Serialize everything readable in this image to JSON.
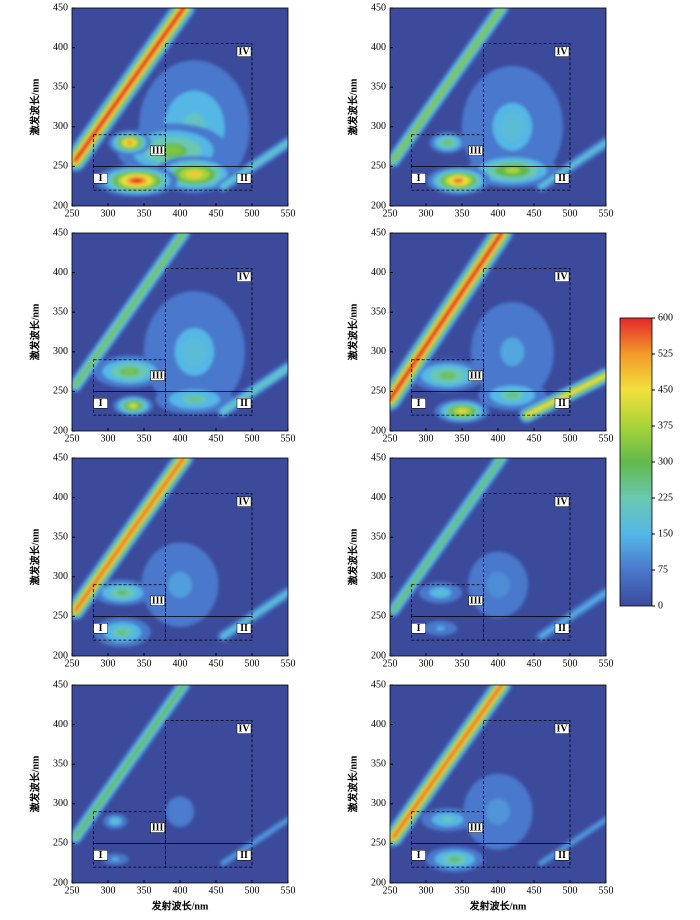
{
  "chart_data": [
    {
      "type": "contour",
      "xlim": [
        250,
        550
      ],
      "ylim": [
        200,
        450
      ],
      "xticks": [
        250,
        300,
        350,
        400,
        450,
        500,
        550
      ],
      "yticks": [
        200,
        250,
        300,
        350,
        400,
        450
      ],
      "ylabel": "激发波长/nm",
      "regions": [
        {
          "label": "I",
          "em": [
            280,
            380
          ],
          "ex": [
            220,
            250
          ]
        },
        {
          "label": "II",
          "em": [
            380,
            500
          ],
          "ex": [
            220,
            250
          ]
        },
        {
          "label": "III",
          "em": [
            280,
            380
          ],
          "ex": [
            250,
            290
          ]
        },
        {
          "label": "IV",
          "em": [
            380,
            500
          ],
          "ex": [
            250,
            405
          ]
        }
      ],
      "band": {
        "em": [
          255,
          405
        ],
        "ex": [
          258,
          450
        ],
        "width": 8,
        "value": 600
      },
      "band2": {
        "em": [
          460,
          550
        ],
        "ex": [
          225,
          280
        ],
        "width": 6,
        "value": 200
      },
      "peaks": [
        {
          "em": 420,
          "ex": 300,
          "w": 55,
          "h": 60,
          "value": 200
        },
        {
          "em": 390,
          "ex": 270,
          "w": 45,
          "h": 20,
          "value": 330
        },
        {
          "em": 420,
          "ex": 240,
          "w": 30,
          "h": 12,
          "value": 480
        },
        {
          "em": 340,
          "ex": 232,
          "w": 28,
          "h": 10,
          "value": 600
        },
        {
          "em": 330,
          "ex": 280,
          "w": 15,
          "h": 8,
          "value": 540
        }
      ]
    },
    {
      "type": "contour",
      "xlim": [
        250,
        550
      ],
      "ylim": [
        200,
        450
      ],
      "xticks": [
        250,
        300,
        350,
        400,
        450,
        500,
        550
      ],
      "yticks": [
        200,
        250,
        300,
        350,
        400,
        450
      ],
      "ylabel": "激发波长/nm",
      "regions": [
        {
          "label": "I",
          "em": [
            280,
            380
          ],
          "ex": [
            220,
            250
          ]
        },
        {
          "label": "II",
          "em": [
            380,
            500
          ],
          "ex": [
            220,
            250
          ]
        },
        {
          "label": "III",
          "em": [
            280,
            380
          ],
          "ex": [
            250,
            290
          ]
        },
        {
          "label": "IV",
          "em": [
            380,
            500
          ],
          "ex": [
            250,
            405
          ]
        }
      ],
      "band": {
        "em": [
          255,
          405
        ],
        "ex": [
          258,
          450
        ],
        "width": 6,
        "value": 340
      },
      "band2": {
        "em": [
          460,
          550
        ],
        "ex": [
          225,
          280
        ],
        "width": 6,
        "value": 180
      },
      "peaks": [
        {
          "em": 420,
          "ex": 300,
          "w": 55,
          "h": 60,
          "value": 170
        },
        {
          "em": 420,
          "ex": 245,
          "w": 35,
          "h": 12,
          "value": 380
        },
        {
          "em": 345,
          "ex": 232,
          "w": 22,
          "h": 9,
          "value": 560
        },
        {
          "em": 330,
          "ex": 280,
          "w": 15,
          "h": 8,
          "value": 320
        }
      ]
    },
    {
      "type": "contour",
      "xlim": [
        250,
        550
      ],
      "ylim": [
        200,
        450
      ],
      "xticks": [
        250,
        300,
        350,
        400,
        450,
        500,
        550
      ],
      "yticks": [
        200,
        250,
        300,
        350,
        400,
        450
      ],
      "ylabel": "激发波长/nm",
      "regions": [
        {
          "label": "I",
          "em": [
            280,
            380
          ],
          "ex": [
            220,
            250
          ]
        },
        {
          "label": "II",
          "em": [
            380,
            500
          ],
          "ex": [
            220,
            250
          ]
        },
        {
          "label": "III",
          "em": [
            280,
            380
          ],
          "ex": [
            250,
            290
          ]
        },
        {
          "label": "IV",
          "em": [
            380,
            500
          ],
          "ex": [
            250,
            405
          ]
        }
      ],
      "band": {
        "em": [
          255,
          405
        ],
        "ex": [
          258,
          450
        ],
        "width": 6,
        "value": 320
      },
      "band2": {
        "em": [
          460,
          550
        ],
        "ex": [
          225,
          280
        ],
        "width": 6,
        "value": 220
      },
      "peaks": [
        {
          "em": 420,
          "ex": 300,
          "w": 55,
          "h": 60,
          "value": 170
        },
        {
          "em": 420,
          "ex": 240,
          "w": 35,
          "h": 12,
          "value": 250
        },
        {
          "em": 330,
          "ex": 275,
          "w": 30,
          "h": 12,
          "value": 330
        },
        {
          "em": 335,
          "ex": 232,
          "w": 15,
          "h": 7,
          "value": 430
        }
      ]
    },
    {
      "type": "contour",
      "xlim": [
        250,
        550
      ],
      "ylim": [
        200,
        450
      ],
      "xticks": [
        250,
        300,
        350,
        400,
        450,
        500,
        550
      ],
      "yticks": [
        200,
        250,
        300,
        350,
        400,
        450
      ],
      "ylabel": "激发波长/nm",
      "regions": [
        {
          "label": "I",
          "em": [
            280,
            380
          ],
          "ex": [
            220,
            250
          ]
        },
        {
          "label": "II",
          "em": [
            380,
            500
          ],
          "ex": [
            220,
            250
          ]
        },
        {
          "label": "III",
          "em": [
            280,
            380
          ],
          "ex": [
            250,
            290
          ]
        },
        {
          "label": "IV",
          "em": [
            380,
            500
          ],
          "ex": [
            250,
            405
          ]
        }
      ],
      "band": {
        "em": [
          250,
          405
        ],
        "ex": [
          240,
          450
        ],
        "width": 8,
        "value": 600
      },
      "band2": {
        "em": [
          440,
          550
        ],
        "ex": [
          220,
          270
        ],
        "width": 6,
        "value": 450
      },
      "peaks": [
        {
          "em": 420,
          "ex": 300,
          "w": 55,
          "h": 60,
          "value": 130
        },
        {
          "em": 420,
          "ex": 245,
          "w": 30,
          "h": 12,
          "value": 260
        },
        {
          "em": 330,
          "ex": 270,
          "w": 30,
          "h": 12,
          "value": 320
        },
        {
          "em": 350,
          "ex": 225,
          "w": 20,
          "h": 8,
          "value": 460
        }
      ]
    },
    {
      "type": "contour",
      "xlim": [
        250,
        550
      ],
      "ylim": [
        200,
        450
      ],
      "xticks": [
        250,
        300,
        350,
        400,
        450,
        500,
        550
      ],
      "yticks": [
        200,
        250,
        300,
        350,
        400,
        450
      ],
      "ylabel": "激发波长/nm",
      "regions": [
        {
          "label": "I",
          "em": [
            280,
            380
          ],
          "ex": [
            220,
            250
          ]
        },
        {
          "label": "II",
          "em": [
            380,
            500
          ],
          "ex": [
            220,
            250
          ]
        },
        {
          "label": "III",
          "em": [
            280,
            380
          ],
          "ex": [
            250,
            290
          ]
        },
        {
          "label": "IV",
          "em": [
            380,
            500
          ],
          "ex": [
            250,
            405
          ]
        }
      ],
      "band": {
        "em": [
          255,
          405
        ],
        "ex": [
          258,
          450
        ],
        "width": 7,
        "value": 560
      },
      "band2": {
        "em": [
          460,
          550
        ],
        "ex": [
          225,
          280
        ],
        "width": 6,
        "value": 180
      },
      "peaks": [
        {
          "em": 400,
          "ex": 290,
          "w": 55,
          "h": 55,
          "value": 120
        },
        {
          "em": 320,
          "ex": 230,
          "w": 25,
          "h": 12,
          "value": 260
        },
        {
          "em": 320,
          "ex": 280,
          "w": 25,
          "h": 10,
          "value": 290
        }
      ]
    },
    {
      "type": "contour",
      "xlim": [
        250,
        550
      ],
      "ylim": [
        200,
        450
      ],
      "xticks": [
        250,
        300,
        350,
        400,
        450,
        500,
        550
      ],
      "yticks": [
        200,
        250,
        300,
        350,
        400,
        450
      ],
      "ylabel": "激发波长/nm",
      "regions": [
        {
          "label": "I",
          "em": [
            280,
            380
          ],
          "ex": [
            220,
            250
          ]
        },
        {
          "label": "II",
          "em": [
            380,
            500
          ],
          "ex": [
            220,
            250
          ]
        },
        {
          "label": "III",
          "em": [
            280,
            380
          ],
          "ex": [
            250,
            290
          ]
        },
        {
          "label": "IV",
          "em": [
            380,
            500
          ],
          "ex": [
            250,
            405
          ]
        }
      ],
      "band": {
        "em": [
          255,
          405
        ],
        "ex": [
          258,
          450
        ],
        "width": 6,
        "value": 280
      },
      "band2": {
        "em": [
          460,
          550
        ],
        "ex": [
          225,
          280
        ],
        "width": 6,
        "value": 150
      },
      "peaks": [
        {
          "em": 400,
          "ex": 290,
          "w": 55,
          "h": 55,
          "value": 100
        },
        {
          "em": 320,
          "ex": 235,
          "w": 20,
          "h": 8,
          "value": 150
        },
        {
          "em": 320,
          "ex": 280,
          "w": 22,
          "h": 10,
          "value": 190
        }
      ]
    },
    {
      "type": "contour",
      "xlim": [
        250,
        550
      ],
      "ylim": [
        200,
        450
      ],
      "xticks": [
        250,
        300,
        350,
        400,
        450,
        500,
        550
      ],
      "yticks": [
        200,
        250,
        300,
        350,
        400,
        450
      ],
      "ylabel": "激发波长/nm",
      "xlabel": "发射波长/nm",
      "regions": [
        {
          "label": "I",
          "em": [
            280,
            380
          ],
          "ex": [
            220,
            250
          ]
        },
        {
          "label": "II",
          "em": [
            380,
            500
          ],
          "ex": [
            220,
            250
          ]
        },
        {
          "label": "III",
          "em": [
            280,
            380
          ],
          "ex": [
            250,
            290
          ]
        },
        {
          "label": "IV",
          "em": [
            380,
            500
          ],
          "ex": [
            250,
            405
          ]
        }
      ],
      "band": {
        "em": [
          255,
          405
        ],
        "ex": [
          258,
          450
        ],
        "width": 6,
        "value": 300
      },
      "band2": {
        "em": [
          460,
          550
        ],
        "ex": [
          225,
          280
        ],
        "width": 5,
        "value": 120
      },
      "peaks": [
        {
          "em": 400,
          "ex": 290,
          "w": 55,
          "h": 55,
          "value": 80
        },
        {
          "em": 310,
          "ex": 230,
          "w": 15,
          "h": 6,
          "value": 160
        },
        {
          "em": 310,
          "ex": 278,
          "w": 12,
          "h": 7,
          "value": 200
        }
      ]
    },
    {
      "type": "contour",
      "xlim": [
        250,
        550
      ],
      "ylim": [
        200,
        450
      ],
      "xticks": [
        250,
        300,
        350,
        400,
        450,
        500,
        550
      ],
      "yticks": [
        200,
        250,
        300,
        350,
        400,
        450
      ],
      "ylabel": "激发波长/nm",
      "xlabel": "发射波长/nm",
      "regions": [
        {
          "label": "I",
          "em": [
            280,
            380
          ],
          "ex": [
            220,
            250
          ]
        },
        {
          "label": "II",
          "em": [
            380,
            500
          ],
          "ex": [
            220,
            250
          ]
        },
        {
          "label": "III",
          "em": [
            280,
            380
          ],
          "ex": [
            250,
            290
          ]
        },
        {
          "label": "IV",
          "em": [
            380,
            500
          ],
          "ex": [
            250,
            405
          ]
        }
      ],
      "band": {
        "em": [
          255,
          405
        ],
        "ex": [
          258,
          450
        ],
        "width": 7,
        "value": 560
      },
      "band2": {
        "em": [
          460,
          550
        ],
        "ex": [
          225,
          280
        ],
        "width": 5,
        "value": 120
      },
      "peaks": [
        {
          "em": 400,
          "ex": 290,
          "w": 55,
          "h": 55,
          "value": 110
        },
        {
          "em": 330,
          "ex": 280,
          "w": 25,
          "h": 10,
          "value": 220
        },
        {
          "em": 340,
          "ex": 230,
          "w": 25,
          "h": 10,
          "value": 280
        }
      ]
    },
    {
      "type": "colorbar",
      "ylim": [
        0,
        600
      ],
      "yticks": [
        0,
        75,
        150,
        225,
        300,
        375,
        450,
        525,
        600
      ],
      "colors": [
        "#3b4a9b",
        "#4a78cc",
        "#55b7e6",
        "#6ac8b0",
        "#62b94b",
        "#a8d43a",
        "#f2e03c",
        "#f39a2a",
        "#e3282a"
      ]
    }
  ]
}
